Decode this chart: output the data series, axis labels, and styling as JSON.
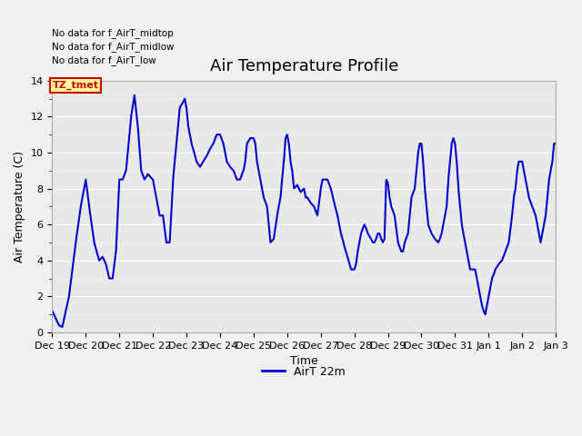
{
  "title": "Air Temperature Profile",
  "xlabel": "Time",
  "ylabel": "Air Temperature (C)",
  "ylim": [
    0,
    14
  ],
  "line_color": "#0000cc",
  "line_width": 1.5,
  "background_color": "#f0f0f0",
  "plot_bg_color": "#e8e8e8",
  "grid_color": "#ffffff",
  "title_fontsize": 13,
  "axis_fontsize": 9,
  "tick_fontsize": 8,
  "legend_label": "AirT 22m",
  "annotations": [
    "No data for f_AirT_low",
    "No data for f_AirT_midlow",
    "No data for f_AirT_midtop"
  ],
  "tooltip_text": "TZ_tmet",
  "tooltip_color": "#cc0000",
  "tooltip_bg": "#ffff99",
  "tooltip_border": "#cc0000",
  "x_tick_labels": [
    "Dec 19",
    "Dec 20",
    "Dec 21",
    "Dec 22",
    "Dec 23",
    "Dec 24",
    "Dec 25",
    "Dec 26",
    "Dec 27",
    "Dec 28",
    "Dec 29",
    "Dec 30",
    "Dec 31",
    "Jan 1",
    "Jan 2",
    "Jan 3"
  ],
  "n_days": 15,
  "figsize": [
    6.4,
    4.8
  ],
  "dpi": 100
}
